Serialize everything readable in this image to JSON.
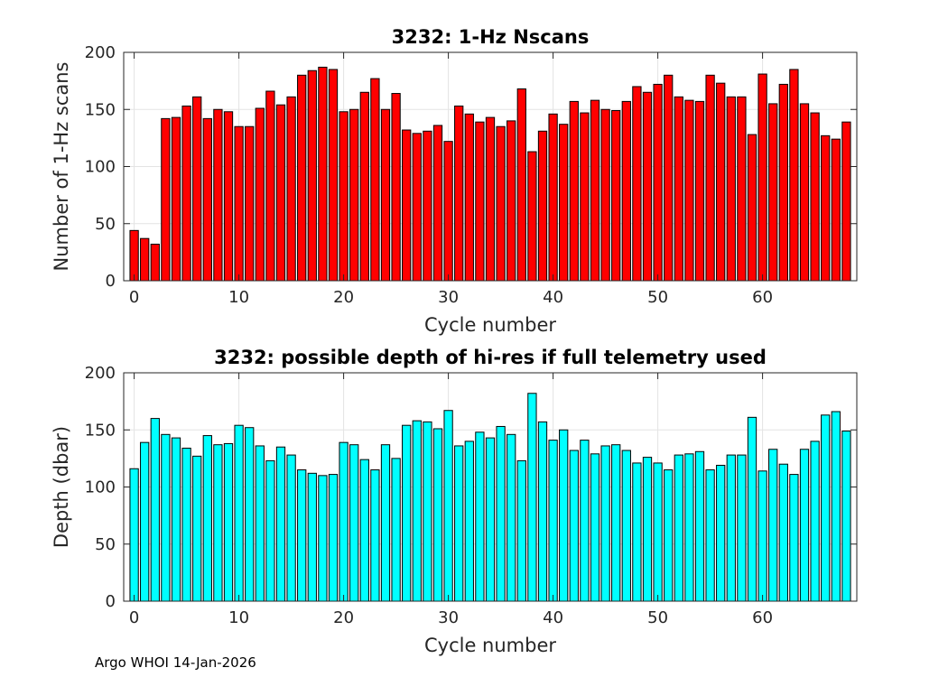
{
  "footer_text": "Argo WHOI 14-Jan-2026",
  "chart_data": [
    {
      "type": "bar",
      "title": "3232: 1-Hz Nscans",
      "xlabel": "Cycle number",
      "ylabel": "Number of 1-Hz scans",
      "xlim": [
        -1,
        69
      ],
      "ylim": [
        0,
        200
      ],
      "xticks": [
        0,
        10,
        20,
        30,
        40,
        50,
        60
      ],
      "yticks": [
        0,
        50,
        100,
        150,
        200
      ],
      "grid": true,
      "bar_color": "#ff0000",
      "x": [
        0,
        1,
        2,
        3,
        4,
        5,
        6,
        7,
        8,
        9,
        10,
        11,
        12,
        13,
        14,
        15,
        16,
        17,
        18,
        19,
        20,
        21,
        22,
        23,
        24,
        25,
        26,
        27,
        28,
        29,
        30,
        31,
        32,
        33,
        34,
        35,
        36,
        37,
        38,
        39,
        40,
        41,
        42,
        43,
        44,
        45,
        46,
        47,
        48,
        49,
        50,
        51,
        52,
        53,
        54,
        55,
        56,
        57,
        58,
        59,
        60,
        61,
        62,
        63,
        64,
        65,
        66,
        67,
        68
      ],
      "values": [
        44,
        37,
        32,
        142,
        143,
        153,
        161,
        142,
        150,
        148,
        135,
        135,
        151,
        166,
        154,
        161,
        180,
        184,
        187,
        185,
        148,
        150,
        165,
        177,
        150,
        164,
        132,
        129,
        131,
        136,
        122,
        153,
        146,
        139,
        143,
        135,
        140,
        168,
        113,
        131,
        146,
        137,
        157,
        147,
        158,
        150,
        149,
        157,
        170,
        165,
        172,
        180,
        161,
        158,
        157,
        180,
        173,
        161,
        161,
        128,
        181,
        155,
        172,
        185,
        155,
        147,
        127,
        124,
        139
      ]
    },
    {
      "type": "bar",
      "title": "3232: possible depth of hi-res if full telemetry used",
      "xlabel": "Cycle number",
      "ylabel": "Depth (dbar)",
      "xlim": [
        -1,
        69
      ],
      "ylim": [
        0,
        200
      ],
      "xticks": [
        0,
        10,
        20,
        30,
        40,
        50,
        60
      ],
      "yticks": [
        0,
        50,
        100,
        150,
        200
      ],
      "grid": true,
      "bar_color": "#00ffff",
      "x": [
        0,
        1,
        2,
        3,
        4,
        5,
        6,
        7,
        8,
        9,
        10,
        11,
        12,
        13,
        14,
        15,
        16,
        17,
        18,
        19,
        20,
        21,
        22,
        23,
        24,
        25,
        26,
        27,
        28,
        29,
        30,
        31,
        32,
        33,
        34,
        35,
        36,
        37,
        38,
        39,
        40,
        41,
        42,
        43,
        44,
        45,
        46,
        47,
        48,
        49,
        50,
        51,
        52,
        53,
        54,
        55,
        56,
        57,
        58,
        59,
        60,
        61,
        62,
        63,
        64,
        65,
        66,
        67,
        68
      ],
      "values": [
        116,
        139,
        160,
        146,
        143,
        134,
        127,
        145,
        137,
        138,
        154,
        152,
        136,
        123,
        135,
        128,
        115,
        112,
        110,
        111,
        139,
        137,
        124,
        115,
        137,
        125,
        154,
        158,
        157,
        151,
        167,
        136,
        140,
        148,
        143,
        153,
        146,
        123,
        182,
        157,
        141,
        150,
        132,
        141,
        129,
        136,
        137,
        132,
        121,
        126,
        121,
        115,
        128,
        129,
        131,
        115,
        119,
        128,
        128,
        161,
        114,
        133,
        120,
        111,
        133,
        140,
        163,
        166,
        149
      ]
    }
  ]
}
